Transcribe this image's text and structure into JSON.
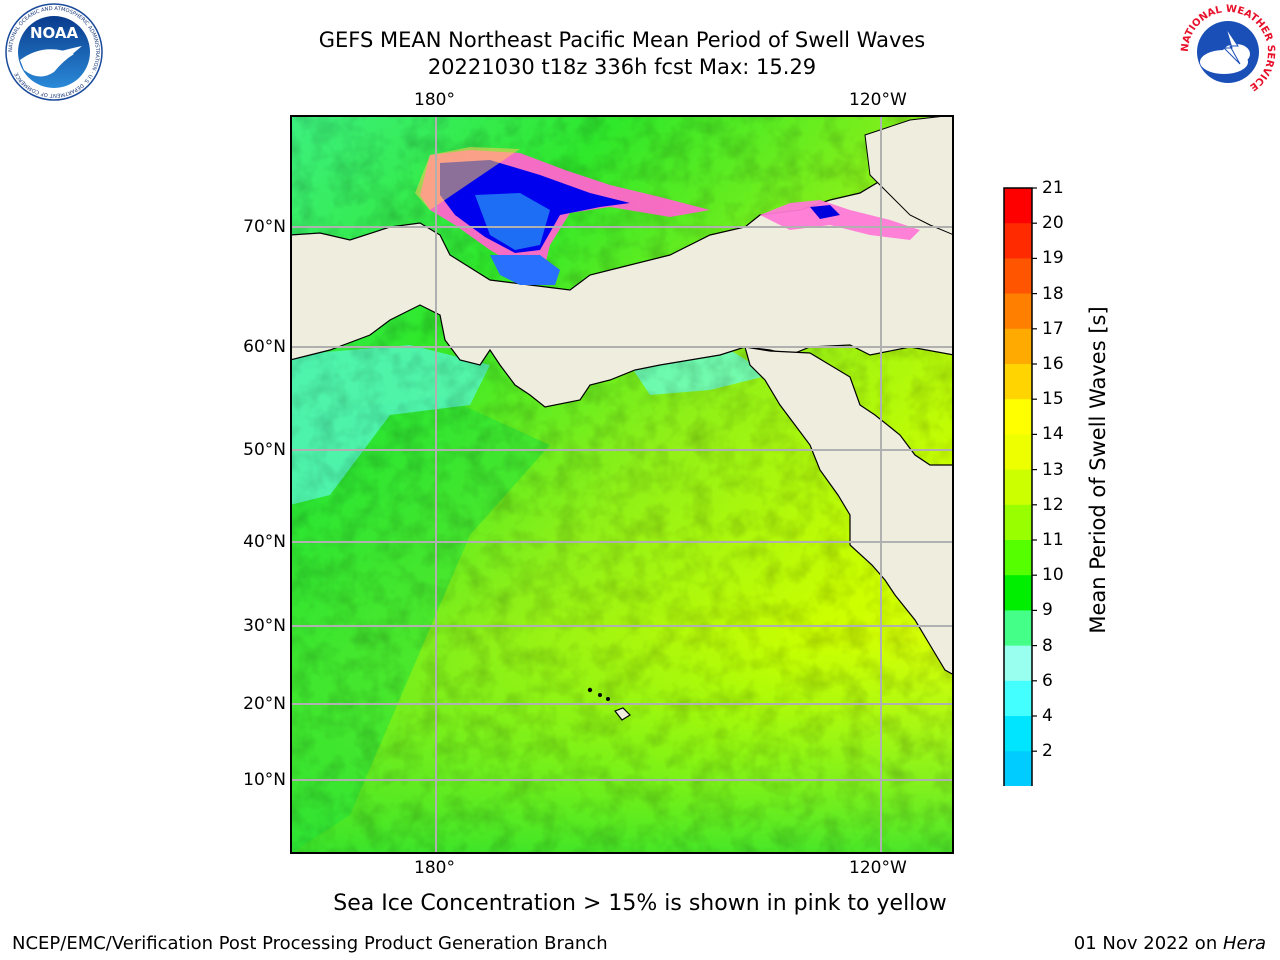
{
  "title": {
    "line1": "GEFS MEAN Northeast Pacific Mean Period of Swell Waves",
    "line2": "20221030 t18z 336h fcst   Max: 15.29"
  },
  "map": {
    "lon_labels_top": [
      "180°",
      "120°W"
    ],
    "lon_labels_bottom": [
      "180°",
      "120°W"
    ],
    "lat_labels": [
      "70°N",
      "60°N",
      "50°N",
      "40°N",
      "30°N",
      "20°N",
      "10°N"
    ],
    "land_color": "#efedde",
    "gridline_color": "#b0b0b0"
  },
  "colorbar": {
    "label": "Mean Period of Swell Waves [s]",
    "ticks": [
      "21",
      "20",
      "19",
      "18",
      "17",
      "16",
      "15",
      "14",
      "13",
      "12",
      "11",
      "10",
      "9",
      "8",
      "6",
      "4",
      "2"
    ],
    "colors": [
      "#ff0000",
      "#ff2a00",
      "#ff5500",
      "#ff8000",
      "#ffaa00",
      "#ffd400",
      "#ffff00",
      "#eeff00",
      "#ccff00",
      "#99ff00",
      "#55ff00",
      "#00ee00",
      "#44ff88",
      "#99ffee",
      "#44ffff",
      "#00e5ff",
      "#00ccff",
      "#0077ff"
    ],
    "extend_color": "#0000ff"
  },
  "note": "Sea Ice Concentration > 15% is shown in pink to yellow",
  "footer": {
    "left": "NCEP/EMC/Verification Post Processing Product Generation Branch",
    "date": "01 Nov 2022 on ",
    "host": "Hera"
  },
  "logos": {
    "noaa_text": "NOAA",
    "noaa_ring": "NATIONAL OCEANIC AND ATMOSPHERIC ADMINISTRATION · U.S. DEPARTMENT OF COMMERCE",
    "nws_ring": "NATIONAL WEATHER SERVICE"
  }
}
